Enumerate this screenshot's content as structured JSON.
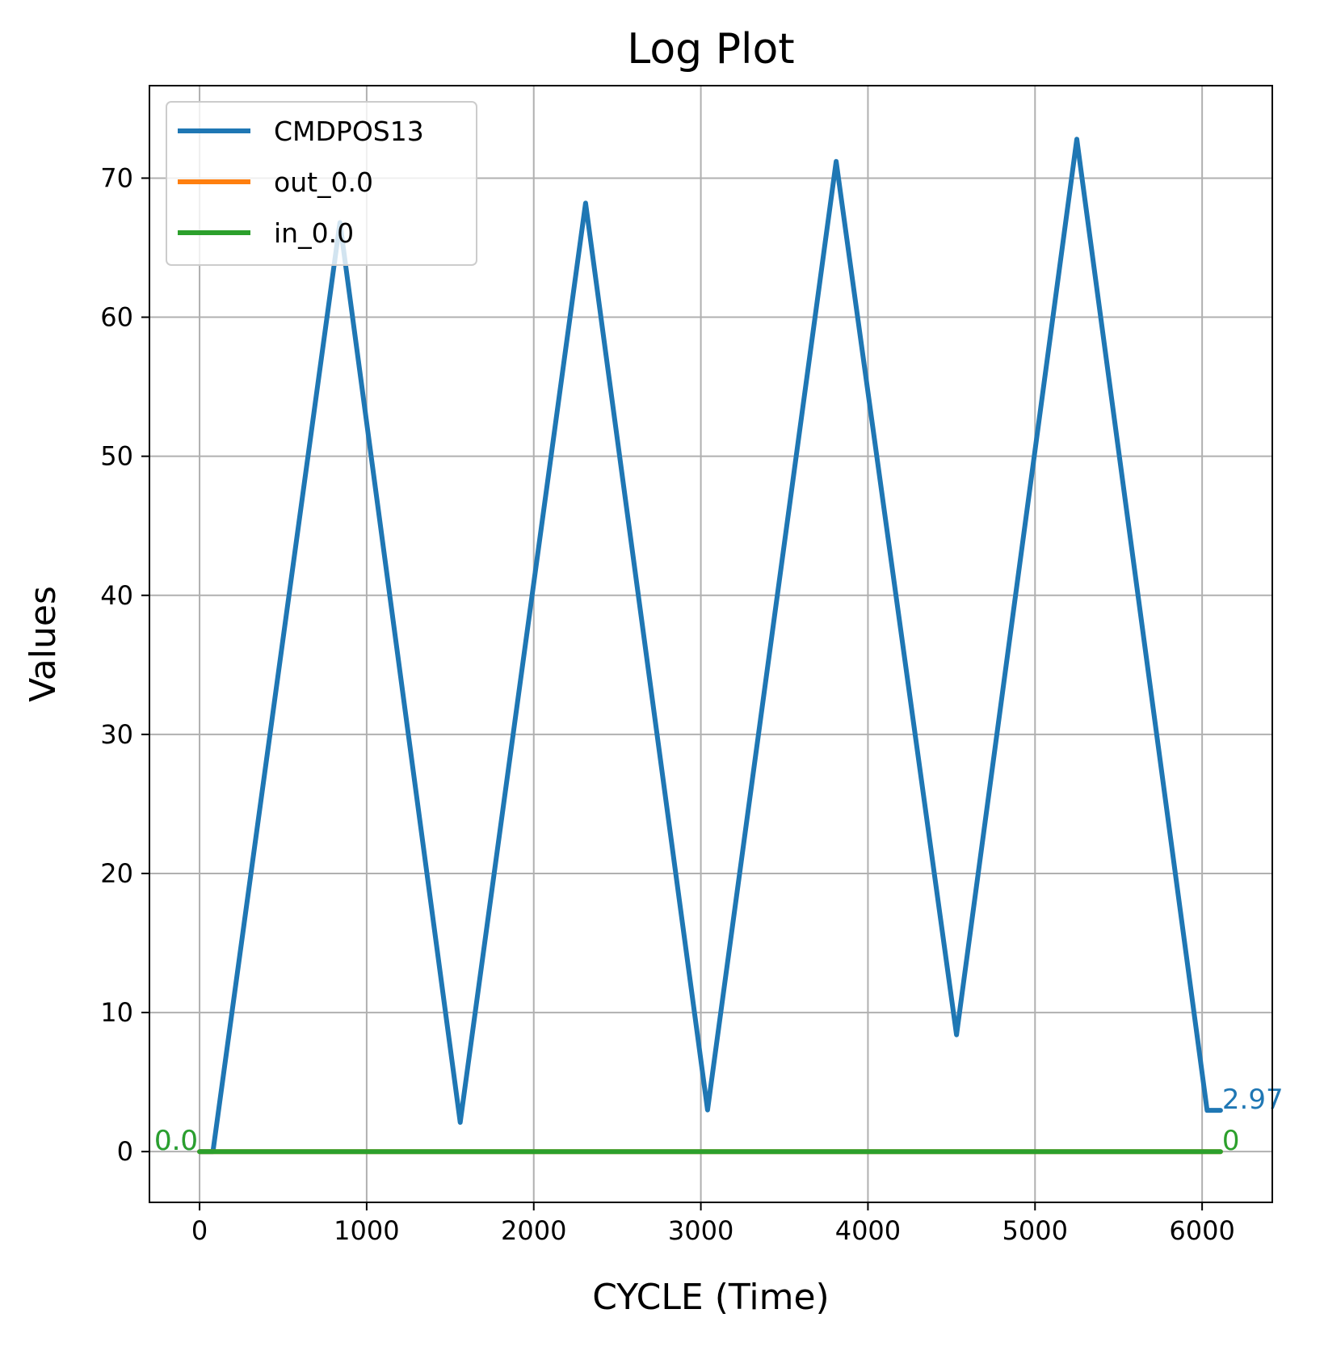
{
  "chart_data": {
    "type": "line",
    "title": "Log Plot",
    "xlabel": "CYCLE (Time)",
    "ylabel": "Values",
    "xlim": [
      -300,
      6420
    ],
    "ylim": [
      -3.65,
      76.65
    ],
    "xticks": [
      0,
      1000,
      2000,
      3000,
      4000,
      5000,
      6000
    ],
    "yticks": [
      0,
      10,
      20,
      30,
      40,
      50,
      60,
      70
    ],
    "grid": true,
    "legend_position": "upper left",
    "series": [
      {
        "name": "CMDPOS13",
        "color": "#1f77b4",
        "x": [
          0,
          80,
          840,
          1560,
          2310,
          3040,
          3810,
          4530,
          5250,
          6030,
          6110
        ],
        "y": [
          0,
          0,
          66.8,
          2.1,
          68.2,
          3.0,
          71.2,
          8.4,
          72.8,
          2.97,
          2.97
        ]
      },
      {
        "name": "out_0.0",
        "color": "#ff7f0e",
        "x": [
          0,
          6110
        ],
        "y": [
          0,
          0
        ]
      },
      {
        "name": "in_0.0",
        "color": "#2ca02c",
        "x": [
          0,
          6110
        ],
        "y": [
          0,
          0
        ]
      }
    ],
    "annotations": [
      {
        "text": "0.0",
        "x": 0,
        "y": 0,
        "color": "#1f77b4",
        "anchor": "end"
      },
      {
        "text": "0.0",
        "x": 0,
        "y": 0,
        "color": "#2ca02c",
        "anchor": "end"
      },
      {
        "text": "2.97",
        "x": 6110,
        "y": 2.97,
        "color": "#1f77b4",
        "anchor": "start"
      },
      {
        "text": "0",
        "x": 6110,
        "y": 0,
        "color": "#2ca02c",
        "anchor": "start"
      }
    ]
  }
}
